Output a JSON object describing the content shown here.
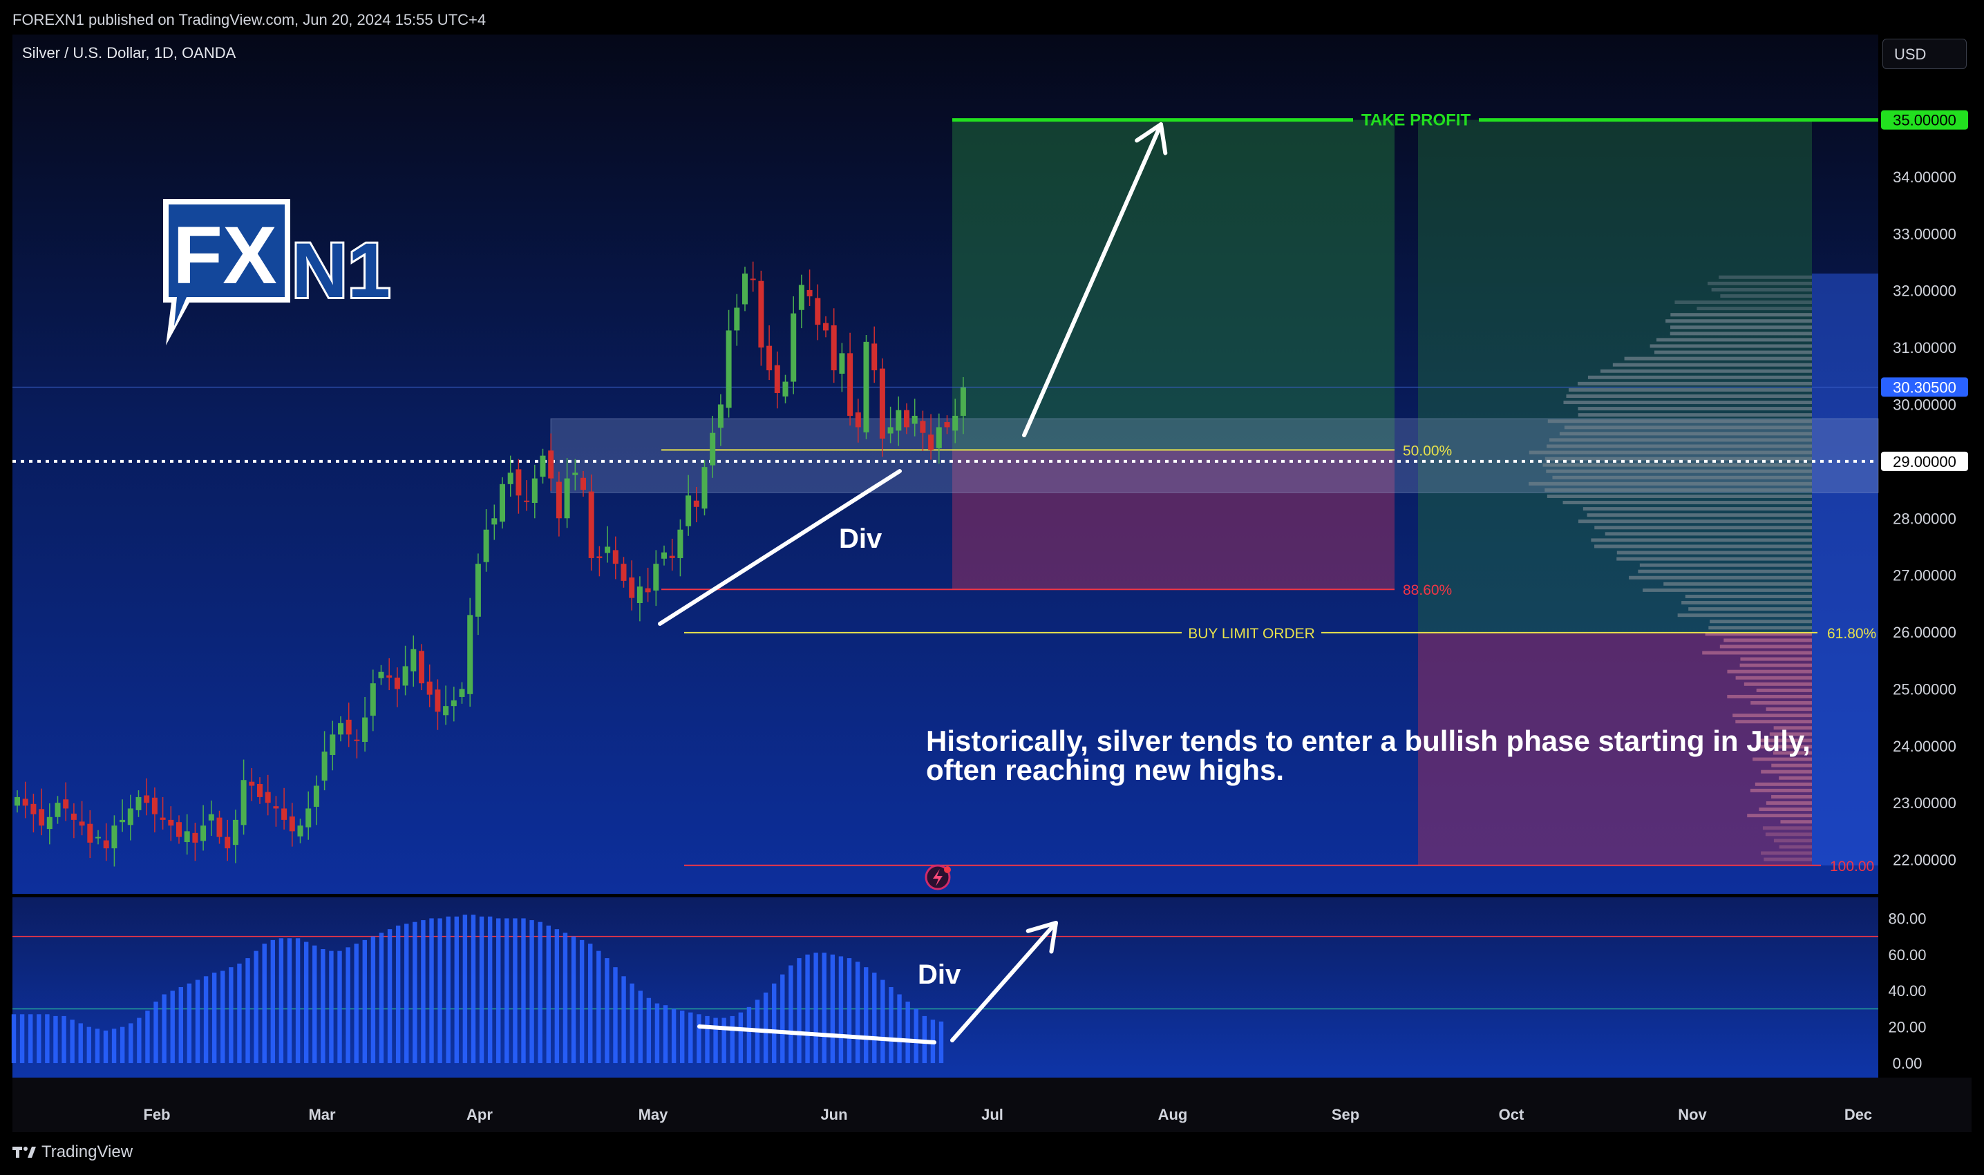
{
  "header": {
    "published_line": "FOREXN1 published on TradingView.com, Jun 20, 2024 15:55 UTC+4",
    "symbol_line": "Silver / U.S. Dollar, 1D, OANDA",
    "currency_button": "USD"
  },
  "logo": {
    "left": "FX",
    "right": "N1"
  },
  "footer": {
    "brand": "TradingView"
  },
  "annotation": {
    "line1": "Historically, silver tends to enter a bullish phase starting in July,",
    "line2": "often reaching new highs."
  },
  "colors": {
    "bull": "#4caf50",
    "bear": "#d32f2f",
    "take_profit": "#22e01f",
    "fib": "#e8e24c",
    "fib_red": "#f23645",
    "histogram": "#2962ff",
    "bg_top": "#050818",
    "bg_bottom": "#0d2f9c"
  },
  "chart_data": [
    {
      "type": "candlestick",
      "title": "Silver / U.S. Dollar, 1D, OANDA",
      "x_ticks": [
        "Feb",
        "Mar",
        "Apr",
        "May",
        "Jun",
        "Jul",
        "Aug",
        "Sep",
        "Oct",
        "Nov",
        "Dec"
      ],
      "y_ticks": [
        "22.00000",
        "23.00000",
        "24.00000",
        "25.00000",
        "26.00000",
        "27.00000",
        "28.00000",
        "29.00000",
        "30.00000",
        "31.00000",
        "32.00000",
        "33.00000",
        "34.00000",
        "35.00000"
      ],
      "ylim": [
        21.4,
        36.5
      ],
      "price_labels": {
        "take_profit": "35.00000",
        "current": "30.30500",
        "entry": "29.00000"
      },
      "current_price": 30.305,
      "entry_price": 29.0,
      "take_profit_price": 35.0,
      "series": [
        {
          "name": "Silver",
          "closes": [
            23.1,
            22.95,
            22.8,
            22.6,
            22.75,
            23.0,
            22.9,
            22.7,
            22.6,
            22.3,
            22.4,
            22.2,
            22.6,
            22.7,
            22.9,
            23.1,
            23.0,
            22.8,
            22.7,
            22.6,
            22.4,
            22.5,
            22.3,
            22.6,
            22.8,
            22.4,
            22.2,
            22.7,
            23.4,
            23.3,
            23.1,
            23.0,
            22.9,
            22.7,
            22.5,
            22.6,
            22.9,
            23.3,
            23.9,
            24.2,
            24.4,
            24.2,
            24.1,
            24.5,
            25.1,
            25.3,
            25.2,
            25.0,
            25.4,
            25.7,
            25.1,
            24.9,
            24.6,
            24.7,
            24.8,
            25.0,
            26.3,
            27.2,
            27.8,
            28.0,
            28.6,
            28.8,
            28.4,
            28.3,
            28.7,
            29.1,
            28.7,
            28.0,
            28.7,
            28.8,
            28.5,
            27.3,
            27.3,
            27.5,
            27.2,
            26.9,
            26.6,
            26.8,
            26.7,
            27.2,
            27.4,
            27.3,
            27.8,
            28.4,
            28.2,
            28.9,
            29.5,
            30.0,
            31.3,
            31.7,
            32.3,
            32.2,
            31.0,
            30.6,
            30.2,
            30.4,
            31.6,
            32.1,
            31.9,
            31.4,
            31.3,
            30.6,
            30.9,
            29.8,
            29.6,
            31.1,
            30.6,
            29.4,
            29.6,
            29.9,
            29.6,
            29.8,
            29.5,
            29.2,
            29.6,
            29.6,
            29.8,
            30.3
          ]
        }
      ],
      "annotations": [
        {
          "text": "TAKE PROFIT",
          "price": 35.0
        },
        {
          "text": "50.00%",
          "price": 29.2
        },
        {
          "text": "88.60%",
          "price": 26.75
        },
        {
          "text": "BUY LIMIT ORDER",
          "price": 25.99
        },
        {
          "text": "61.80%",
          "price": 25.99
        },
        {
          "text": "100.00",
          "price": 21.9
        },
        {
          "text": "Div"
        }
      ]
    },
    {
      "type": "bar",
      "title": "",
      "y_ticks": [
        "0.00",
        "20.00",
        "40.00",
        "60.00",
        "80.00"
      ],
      "ylim": [
        -8,
        92
      ],
      "levels": [
        70,
        30
      ],
      "annotations": [
        {
          "text": "Div"
        }
      ],
      "series": [
        {
          "name": "",
          "values": [
            27,
            27,
            27,
            27,
            27,
            26,
            26,
            24,
            22,
            20,
            19,
            18,
            19,
            20,
            22,
            25,
            29,
            34,
            38,
            40,
            42,
            44,
            46,
            48,
            50,
            51,
            53,
            55,
            58,
            62,
            66,
            68,
            69,
            69,
            69,
            67,
            65,
            63,
            62,
            62,
            64,
            66,
            68,
            70,
            72,
            74,
            76,
            77,
            78,
            79,
            80,
            80,
            81,
            81,
            82,
            82,
            81,
            81,
            80,
            80,
            80,
            80,
            79,
            78,
            76,
            74,
            72,
            70,
            68,
            66,
            62,
            58,
            53,
            48,
            44,
            40,
            36,
            33,
            32,
            30,
            29,
            28,
            27,
            26,
            25,
            25,
            26,
            28,
            31,
            35,
            39,
            44,
            49,
            54,
            58,
            60,
            61,
            61,
            60,
            59,
            58,
            56,
            53,
            50,
            46,
            42,
            38,
            34,
            30,
            26,
            24,
            23
          ]
        }
      ]
    }
  ]
}
